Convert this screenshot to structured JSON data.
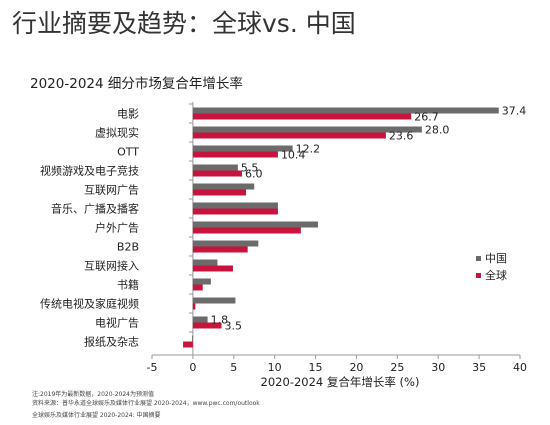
{
  "page_title": "行业摘要及趋势：全球vs. 中国",
  "footnotes": [
    "注:2019年为最新数据，2020-2024为预测值",
    "资料来源：普华永道全球娱乐及媒体行业展望 2020-2024，www.pwc.com/outlook"
  ],
  "footer": "全球娱乐及媒体行业展望 2020-2024: 中国摘要",
  "colors": {
    "china": "#6b6b6b",
    "global": "#c8143c"
  },
  "chart_data": {
    "type": "bar",
    "orientation": "horizontal",
    "title": "2020-2024 细分市场复合年增长率",
    "xlabel": "2020-2024 复合年增长率 (%)",
    "ylabel": "",
    "xlim": [
      -5,
      40
    ],
    "xticks": [
      -5,
      0,
      5,
      10,
      15,
      20,
      25,
      30,
      35,
      40
    ],
    "grid": false,
    "legend_position": "right",
    "categories": [
      "电影",
      "虚拟现实",
      "OTT",
      "视频游戏及电子竞技",
      "互联网广告",
      "音乐、广播及播客",
      "户外广告",
      "B2B",
      "互联网接入",
      "书籍",
      "传统电视及家庭视频",
      "电视广告",
      "报纸及杂志"
    ],
    "series": [
      {
        "name": "中国",
        "color": "#6b6b6b",
        "values": [
          37.4,
          28.0,
          12.2,
          5.5,
          7.5,
          10.4,
          15.3,
          8.0,
          3.0,
          2.2,
          5.2,
          1.8,
          -0.1
        ]
      },
      {
        "name": "全球",
        "color": "#c8143c",
        "values": [
          26.7,
          23.6,
          10.4,
          6.0,
          6.5,
          10.4,
          13.2,
          6.7,
          4.9,
          1.2,
          0.3,
          3.5,
          -1.2
        ]
      }
    ],
    "data_labels": [
      {
        "category": 0,
        "series": 0,
        "text": "37.4"
      },
      {
        "category": 0,
        "series": 1,
        "text": "26.7"
      },
      {
        "category": 1,
        "series": 0,
        "text": "28.0"
      },
      {
        "category": 1,
        "series": 1,
        "text": "23.6"
      },
      {
        "category": 2,
        "series": 0,
        "text": "12.2"
      },
      {
        "category": 2,
        "series": 1,
        "text": "10.4"
      },
      {
        "category": 3,
        "series": 0,
        "text": "5.5"
      },
      {
        "category": 3,
        "series": 1,
        "text": "6.0"
      },
      {
        "category": 11,
        "series": 0,
        "text": "1.8"
      },
      {
        "category": 11,
        "series": 1,
        "text": "3.5"
      }
    ]
  }
}
